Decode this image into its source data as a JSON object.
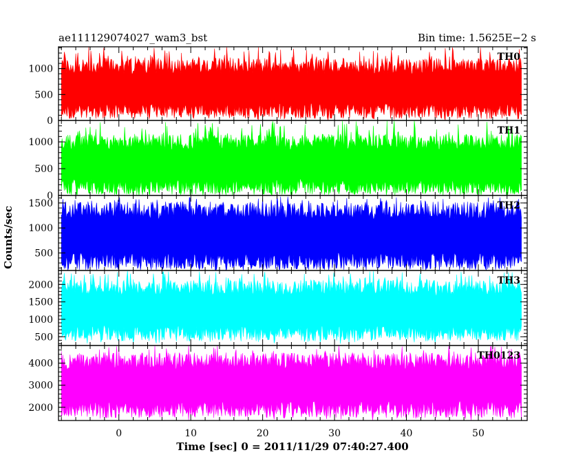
{
  "header": {
    "title": "ae111129074027_wam3_bst",
    "bin_time": "Bin time: 1.5625E−2 s"
  },
  "chart_data": {
    "type": "line",
    "title": "ae111129074027_wam3_bst",
    "subtitle": "Bin time: 1.5625E−2 s",
    "xlabel": "Time [sec] 0 = 2011/11/29 07:40:27.400",
    "ylabel": "Counts/sec",
    "xlim": [
      -8.4,
      56.8
    ],
    "x_range_data": [
      -8.0,
      56.0
    ],
    "bin_time": 0.015625,
    "x_ticks": [
      0,
      10,
      20,
      30,
      40,
      50
    ],
    "x_tick_labels": [
      "0",
      "10",
      "20",
      "30",
      "40",
      "50"
    ],
    "grid": false,
    "legend": "none",
    "series": [
      {
        "name": "TH0",
        "color": "#ff0000",
        "ylim": [
          0,
          1420
        ],
        "y_ticks": [
          0,
          500,
          1000
        ],
        "y_tick_labels": [
          "0",
          "500",
          "1000"
        ],
        "typical_low": 180,
        "typical_high": 1050,
        "min": 0,
        "max": 1420,
        "noise_seed": 11
      },
      {
        "name": "TH1",
        "color": "#00ff00",
        "ylim": [
          0,
          1400
        ],
        "y_ticks": [
          0,
          500,
          1000
        ],
        "y_tick_labels": [
          "0",
          "500",
          "1000"
        ],
        "typical_low": 160,
        "typical_high": 1000,
        "min": 0,
        "max": 1400,
        "noise_seed": 23
      },
      {
        "name": "TH2",
        "color": "#0000ff",
        "ylim": [
          150,
          1650
        ],
        "y_ticks": [
          500,
          1000,
          1500
        ],
        "y_tick_labels": [
          "500",
          "1000",
          "1500"
        ],
        "typical_low": 330,
        "typical_high": 1350,
        "min": 150,
        "max": 1650,
        "noise_seed": 37
      },
      {
        "name": "TH3",
        "color": "#00ffff",
        "ylim": [
          250,
          2400
        ],
        "y_ticks": [
          500,
          1000,
          1500,
          2000
        ],
        "y_tick_labels": [
          "500",
          "1000",
          "1500",
          "2000"
        ],
        "typical_low": 600,
        "typical_high": 1900,
        "min": 300,
        "max": 2400,
        "noise_seed": 41
      },
      {
        "name": "TH0123",
        "color": "#ff00ff",
        "ylim": [
          1400,
          4800
        ],
        "y_ticks": [
          2000,
          3000,
          4000
        ],
        "y_tick_labels": [
          "2000",
          "3000",
          "4000"
        ],
        "typical_low": 1900,
        "typical_high": 4100,
        "min": 1400,
        "max": 4800,
        "noise_seed": 53
      }
    ]
  }
}
